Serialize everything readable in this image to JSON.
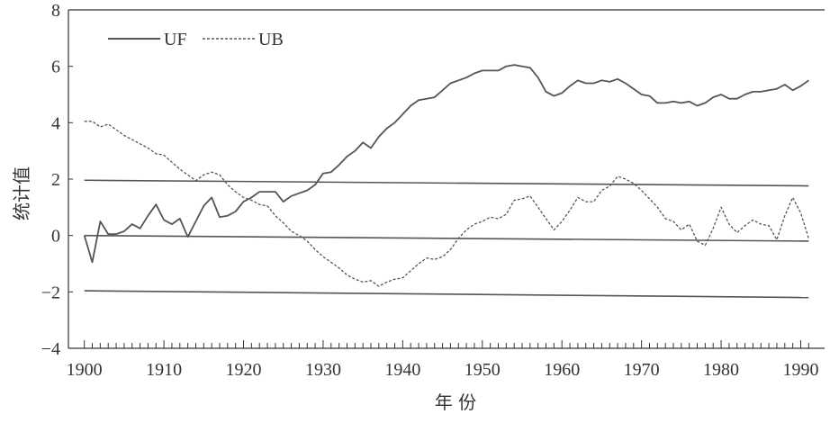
{
  "chart_data": {
    "type": "line",
    "xlabel": "年 份",
    "ylabel": "统计值",
    "xlim": [
      1898,
      1993
    ],
    "ylim": [
      -4,
      8
    ],
    "xticks": [
      1900,
      1910,
      1920,
      1930,
      1940,
      1950,
      1960,
      1970,
      1980,
      1990
    ],
    "yticks": [
      -4,
      -2,
      0,
      2,
      4,
      6,
      8
    ],
    "grid": false,
    "legend": "top-left",
    "colors": {
      "line": "#555555",
      "axis": "#333333"
    },
    "reference_lines": [
      {
        "x": [
          1900,
          1991
        ],
        "y": [
          1.96,
          1.76
        ]
      },
      {
        "x": [
          1900,
          1991
        ],
        "y": [
          0.0,
          -0.2
        ]
      },
      {
        "x": [
          1900,
          1991
        ],
        "y": [
          -1.96,
          -2.2
        ]
      }
    ],
    "series": [
      {
        "name": "UF",
        "style": "solid",
        "x": [
          1900,
          1901,
          1902,
          1903,
          1904,
          1905,
          1906,
          1907,
          1908,
          1909,
          1910,
          1911,
          1912,
          1913,
          1914,
          1915,
          1916,
          1917,
          1918,
          1919,
          1920,
          1921,
          1922,
          1923,
          1924,
          1925,
          1926,
          1927,
          1928,
          1929,
          1930,
          1931,
          1932,
          1933,
          1934,
          1935,
          1936,
          1937,
          1938,
          1939,
          1940,
          1941,
          1942,
          1943,
          1944,
          1945,
          1946,
          1947,
          1948,
          1949,
          1950,
          1951,
          1952,
          1953,
          1954,
          1955,
          1956,
          1957,
          1958,
          1959,
          1960,
          1961,
          1962,
          1963,
          1964,
          1965,
          1966,
          1967,
          1968,
          1969,
          1970,
          1971,
          1972,
          1973,
          1974,
          1975,
          1976,
          1977,
          1978,
          1979,
          1980,
          1981,
          1982,
          1983,
          1984,
          1985,
          1986,
          1987,
          1988,
          1989,
          1990,
          1991
        ],
        "values": [
          0.0,
          -0.95,
          0.5,
          0.05,
          0.05,
          0.15,
          0.4,
          0.25,
          0.7,
          1.1,
          0.55,
          0.4,
          0.6,
          -0.05,
          0.5,
          1.05,
          1.35,
          0.65,
          0.7,
          0.85,
          1.2,
          1.35,
          1.55,
          1.55,
          1.55,
          1.2,
          1.4,
          1.5,
          1.6,
          1.8,
          2.2,
          2.25,
          2.5,
          2.8,
          3.0,
          3.3,
          3.1,
          3.5,
          3.8,
          4.0,
          4.3,
          4.6,
          4.8,
          4.85,
          4.9,
          5.15,
          5.4,
          5.5,
          5.6,
          5.75,
          5.85,
          5.85,
          5.85,
          6.0,
          6.05,
          6.0,
          5.95,
          5.6,
          5.1,
          4.95,
          5.05,
          5.3,
          5.5,
          5.4,
          5.4,
          5.5,
          5.45,
          5.55,
          5.4,
          5.2,
          5.0,
          4.95,
          4.7,
          4.7,
          4.75,
          4.7,
          4.75,
          4.6,
          4.7,
          4.9,
          5.0,
          4.85,
          4.85,
          5.0,
          5.1,
          5.1,
          5.15,
          5.2,
          5.35,
          5.15,
          5.3,
          5.5
        ]
      },
      {
        "name": "UB",
        "style": "dashed",
        "x": [
          1900,
          1901,
          1902,
          1903,
          1904,
          1905,
          1906,
          1907,
          1908,
          1909,
          1910,
          1911,
          1912,
          1913,
          1914,
          1915,
          1916,
          1917,
          1918,
          1919,
          1920,
          1921,
          1922,
          1923,
          1924,
          1925,
          1926,
          1927,
          1928,
          1929,
          1930,
          1931,
          1932,
          1933,
          1934,
          1935,
          1936,
          1937,
          1938,
          1939,
          1940,
          1941,
          1942,
          1943,
          1944,
          1945,
          1946,
          1947,
          1948,
          1949,
          1950,
          1951,
          1952,
          1953,
          1954,
          1955,
          1956,
          1957,
          1958,
          1959,
          1960,
          1961,
          1962,
          1963,
          1964,
          1965,
          1966,
          1967,
          1968,
          1969,
          1970,
          1971,
          1972,
          1973,
          1974,
          1975,
          1976,
          1977,
          1978,
          1979,
          1980,
          1981,
          1982,
          1983,
          1984,
          1985,
          1986,
          1987,
          1988,
          1989,
          1990,
          1991
        ],
        "values": [
          4.05,
          4.05,
          3.85,
          3.95,
          3.75,
          3.55,
          3.4,
          3.25,
          3.1,
          2.9,
          2.85,
          2.6,
          2.35,
          2.15,
          1.95,
          2.15,
          2.25,
          2.15,
          1.8,
          1.55,
          1.35,
          1.25,
          1.1,
          1.05,
          0.7,
          0.45,
          0.15,
          0.0,
          -0.2,
          -0.5,
          -0.75,
          -0.95,
          -1.15,
          -1.4,
          -1.55,
          -1.65,
          -1.6,
          -1.8,
          -1.65,
          -1.55,
          -1.5,
          -1.25,
          -1.0,
          -0.8,
          -0.85,
          -0.75,
          -0.5,
          -0.1,
          0.2,
          0.4,
          0.5,
          0.65,
          0.6,
          0.75,
          1.25,
          1.3,
          1.4,
          1.0,
          0.6,
          0.2,
          0.5,
          0.9,
          1.35,
          1.2,
          1.2,
          1.6,
          1.75,
          2.1,
          2.0,
          1.85,
          1.6,
          1.3,
          1.0,
          0.6,
          0.5,
          0.2,
          0.4,
          -0.2,
          -0.35,
          0.25,
          1.0,
          0.4,
          0.1,
          0.35,
          0.55,
          0.4,
          0.35,
          -0.15,
          0.7,
          1.35,
          0.8,
          -0.1
        ]
      }
    ]
  }
}
